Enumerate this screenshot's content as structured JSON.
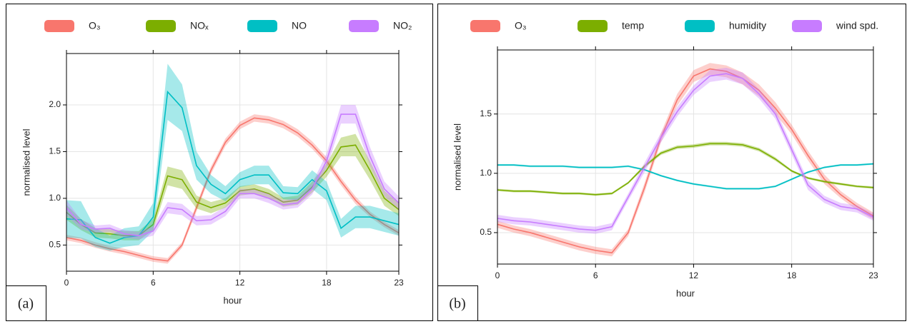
{
  "chart_data": [
    {
      "type": "line",
      "panel_label": "(a)",
      "x_label": "hour",
      "y_label": "normalised level",
      "x": [
        0,
        1,
        2,
        3,
        4,
        5,
        6,
        7,
        8,
        9,
        10,
        11,
        12,
        13,
        14,
        15,
        16,
        17,
        18,
        19,
        20,
        21,
        22,
        23
      ],
      "xlim": [
        0,
        23
      ],
      "xticks": [
        0,
        6,
        12,
        18,
        23
      ],
      "ylim": [
        0.22,
        2.55
      ],
      "yticks": [
        0.5,
        {
          "value": 1,
          "label": "1.0"
        },
        1.5,
        {
          "value": 2,
          "label": "2.0"
        }
      ],
      "grid": true,
      "legend": "top",
      "series": [
        {
          "name": "O₃",
          "color": "#f8766d",
          "values": [
            0.58,
            0.55,
            0.5,
            0.46,
            0.43,
            0.39,
            0.35,
            0.33,
            0.5,
            0.9,
            1.3,
            1.6,
            1.78,
            1.86,
            1.84,
            1.79,
            1.7,
            1.57,
            1.4,
            1.18,
            0.98,
            0.83,
            0.72,
            0.63
          ],
          "errors": [
            0.03,
            0.03,
            0.03,
            0.03,
            0.03,
            0.03,
            0.03,
            0.03,
            0.03,
            0.04,
            0.04,
            0.04,
            0.04,
            0.04,
            0.04,
            0.04,
            0.04,
            0.04,
            0.04,
            0.04,
            0.04,
            0.03,
            0.03,
            0.03
          ]
        },
        {
          "name": "NOₓ",
          "color": "#7cae00",
          "values": [
            0.85,
            0.72,
            0.63,
            0.62,
            0.6,
            0.6,
            0.72,
            1.24,
            1.2,
            0.96,
            0.9,
            0.95,
            1.08,
            1.1,
            1.05,
            0.96,
            0.98,
            1.12,
            1.3,
            1.55,
            1.57,
            1.3,
            1.0,
            0.88
          ],
          "errors": [
            0.08,
            0.06,
            0.05,
            0.05,
            0.05,
            0.05,
            0.06,
            0.1,
            0.1,
            0.07,
            0.06,
            0.05,
            0.05,
            0.05,
            0.05,
            0.05,
            0.05,
            0.06,
            0.07,
            0.1,
            0.12,
            0.1,
            0.08,
            0.07
          ]
        },
        {
          "name": "NO",
          "color": "#00bfc4",
          "values": [
            0.78,
            0.77,
            0.58,
            0.52,
            0.58,
            0.6,
            0.8,
            2.14,
            1.97,
            1.35,
            1.15,
            1.05,
            1.2,
            1.25,
            1.25,
            1.06,
            1.05,
            1.2,
            1.08,
            0.68,
            0.8,
            0.8,
            0.76,
            0.72
          ],
          "errors": [
            0.2,
            0.2,
            0.1,
            0.08,
            0.1,
            0.1,
            0.15,
            0.3,
            0.25,
            0.15,
            0.1,
            0.08,
            0.08,
            0.1,
            0.1,
            0.07,
            0.07,
            0.1,
            0.1,
            0.1,
            0.12,
            0.12,
            0.12,
            0.12
          ]
        },
        {
          "name": "NO₂",
          "color": "#c77cff",
          "values": [
            0.9,
            0.72,
            0.67,
            0.68,
            0.62,
            0.6,
            0.65,
            0.9,
            0.88,
            0.76,
            0.77,
            0.86,
            1.05,
            1.05,
            1.0,
            0.93,
            0.95,
            1.1,
            1.4,
            1.9,
            1.9,
            1.45,
            1.1,
            0.95
          ],
          "errors": [
            0.08,
            0.05,
            0.04,
            0.04,
            0.04,
            0.04,
            0.05,
            0.06,
            0.06,
            0.05,
            0.05,
            0.05,
            0.05,
            0.05,
            0.05,
            0.05,
            0.05,
            0.06,
            0.08,
            0.1,
            0.1,
            0.1,
            0.08,
            0.07
          ]
        }
      ]
    },
    {
      "type": "line",
      "panel_label": "(b)",
      "x_label": "hour",
      "y_label": "normalised level",
      "x": [
        0,
        1,
        2,
        3,
        4,
        5,
        6,
        7,
        8,
        9,
        10,
        11,
        12,
        13,
        14,
        15,
        16,
        17,
        18,
        19,
        20,
        21,
        22,
        23
      ],
      "xlim": [
        0,
        23
      ],
      "xticks": [
        0,
        6,
        12,
        18,
        23
      ],
      "ylim": [
        0.235,
        2.04
      ],
      "yticks": [
        0.5,
        {
          "value": 1,
          "label": "1.0"
        },
        1.5
      ],
      "grid": true,
      "legend": "top",
      "series": [
        {
          "name": "O₃",
          "color": "#f8766d",
          "values": [
            0.57,
            0.53,
            0.5,
            0.46,
            0.42,
            0.38,
            0.35,
            0.33,
            0.5,
            0.88,
            1.3,
            1.62,
            1.82,
            1.88,
            1.86,
            1.8,
            1.7,
            1.55,
            1.37,
            1.15,
            0.95,
            0.82,
            0.72,
            0.64
          ],
          "errors": [
            0.03,
            0.03,
            0.03,
            0.03,
            0.03,
            0.03,
            0.03,
            0.03,
            0.03,
            0.04,
            0.04,
            0.05,
            0.05,
            0.05,
            0.05,
            0.05,
            0.05,
            0.05,
            0.04,
            0.04,
            0.04,
            0.03,
            0.03,
            0.03
          ]
        },
        {
          "name": "temp",
          "color": "#7cae00",
          "values": [
            0.86,
            0.85,
            0.85,
            0.84,
            0.83,
            0.83,
            0.82,
            0.83,
            0.92,
            1.06,
            1.17,
            1.22,
            1.23,
            1.25,
            1.25,
            1.24,
            1.2,
            1.12,
            1.02,
            0.96,
            0.93,
            0.91,
            0.89,
            0.88
          ],
          "errors": [
            0.01,
            0.01,
            0.01,
            0.01,
            0.01,
            0.01,
            0.01,
            0.01,
            0.01,
            0.015,
            0.015,
            0.015,
            0.015,
            0.015,
            0.015,
            0.015,
            0.015,
            0.015,
            0.01,
            0.01,
            0.01,
            0.01,
            0.01,
            0.01
          ]
        },
        {
          "name": "humidity",
          "color": "#00bfc4",
          "values": [
            1.07,
            1.07,
            1.06,
            1.06,
            1.06,
            1.05,
            1.05,
            1.05,
            1.06,
            1.03,
            0.98,
            0.94,
            0.91,
            0.89,
            0.87,
            0.87,
            0.87,
            0.89,
            0.95,
            1.01,
            1.05,
            1.07,
            1.07,
            1.08
          ],
          "errors": [
            0.008,
            0.008,
            0.008,
            0.008,
            0.008,
            0.008,
            0.008,
            0.008,
            0.008,
            0.008,
            0.008,
            0.008,
            0.008,
            0.008,
            0.008,
            0.008,
            0.008,
            0.008,
            0.008,
            0.008,
            0.008,
            0.008,
            0.008,
            0.008
          ]
        },
        {
          "name": "wind spd.",
          "color": "#c77cff",
          "values": [
            0.62,
            0.6,
            0.59,
            0.57,
            0.55,
            0.53,
            0.52,
            0.55,
            0.8,
            1.05,
            1.3,
            1.52,
            1.7,
            1.82,
            1.84,
            1.8,
            1.67,
            1.5,
            1.2,
            0.9,
            0.78,
            0.72,
            0.7,
            0.63
          ],
          "errors": [
            0.03,
            0.03,
            0.03,
            0.03,
            0.03,
            0.03,
            0.03,
            0.03,
            0.03,
            0.04,
            0.04,
            0.04,
            0.04,
            0.05,
            0.05,
            0.05,
            0.04,
            0.04,
            0.04,
            0.04,
            0.03,
            0.03,
            0.03,
            0.03
          ]
        }
      ]
    }
  ]
}
